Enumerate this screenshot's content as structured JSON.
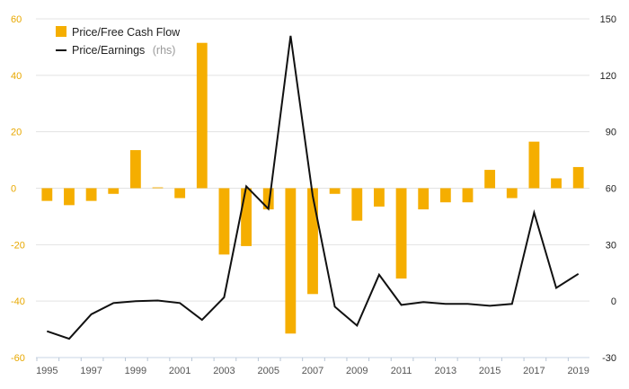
{
  "chart_data": {
    "type": "bar+line",
    "x": [
      1995,
      1996,
      1997,
      1998,
      1999,
      2000,
      2001,
      2002,
      2003,
      2004,
      2005,
      2006,
      2007,
      2008,
      2009,
      2010,
      2011,
      2012,
      2013,
      2014,
      2015,
      2016,
      2017,
      2018,
      2019
    ],
    "x_tick_labels": [
      "1995",
      "1997",
      "1999",
      "2001",
      "2003",
      "2005",
      "2007",
      "2009",
      "2011",
      "2013",
      "2015",
      "2017",
      "2019"
    ],
    "series": [
      {
        "name": "Price/Free Cash Flow",
        "type": "bar",
        "axis": "left",
        "color": "#f5ae00",
        "values": [
          -4.5,
          -6,
          -4.5,
          -2,
          13.5,
          0.3,
          -3.5,
          51.5,
          -23.5,
          -20.5,
          -7.5,
          -51.5,
          -37.5,
          -2,
          -11.5,
          -6.5,
          -32,
          -7.5,
          -5,
          -5,
          6.5,
          -3.5,
          16.5,
          3.5,
          7.5
        ]
      },
      {
        "name": "Price/Earnings",
        "name_suffix": "(rhs)",
        "type": "line",
        "axis": "right",
        "color": "#111111",
        "values": [
          -16,
          -20,
          -7,
          -1,
          0,
          0.3,
          -1,
          -10,
          2,
          61,
          49,
          141,
          56,
          -3,
          -13,
          14,
          -2,
          -0.5,
          -1.5,
          -1.5,
          -2.5,
          -1.5,
          47,
          7,
          14.5
        ]
      }
    ],
    "y_left": {
      "range": [
        -60,
        60
      ],
      "ticks": [
        "60",
        "40",
        "20",
        "0",
        "-20",
        "-40",
        "-60"
      ],
      "tick_values": [
        60,
        40,
        20,
        0,
        -20,
        -40,
        -60
      ]
    },
    "y_right": {
      "range": [
        -30,
        150
      ],
      "ticks": [
        "150",
        "120",
        "90",
        "60",
        "30",
        "0",
        "-30"
      ],
      "tick_values": [
        150,
        120,
        90,
        60,
        30,
        0,
        -30
      ]
    },
    "grid": true,
    "legend_position": "top-left"
  }
}
